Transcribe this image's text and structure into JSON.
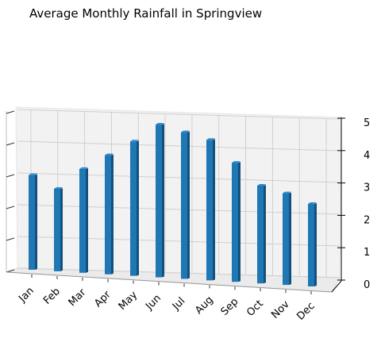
{
  "chart_data": {
    "type": "bar",
    "title": "Average Monthly Rainfall in Springview",
    "categories": [
      "Jan",
      "Feb",
      "Mar",
      "Apr",
      "May",
      "Jun",
      "Jul",
      "Aug",
      "Sep",
      "Oct",
      "Nov",
      "Dec"
    ],
    "values": [
      3.1,
      2.7,
      3.4,
      3.9,
      4.4,
      5.0,
      4.8,
      4.6,
      3.9,
      3.2,
      3.0,
      2.7
    ],
    "zticks": [
      0,
      1,
      2,
      3,
      4,
      5
    ],
    "zlim": [
      0,
      5
    ],
    "xlabel": "",
    "ylabel": "",
    "zlabel": "",
    "grid": true,
    "projection": "3d",
    "colors": {
      "bar_front": "#1f77b4",
      "bar_side": "#14507e",
      "bar_top": "#2c8ad0",
      "pane": "#f2f2f2",
      "grid": "#cfcfcf"
    }
  }
}
